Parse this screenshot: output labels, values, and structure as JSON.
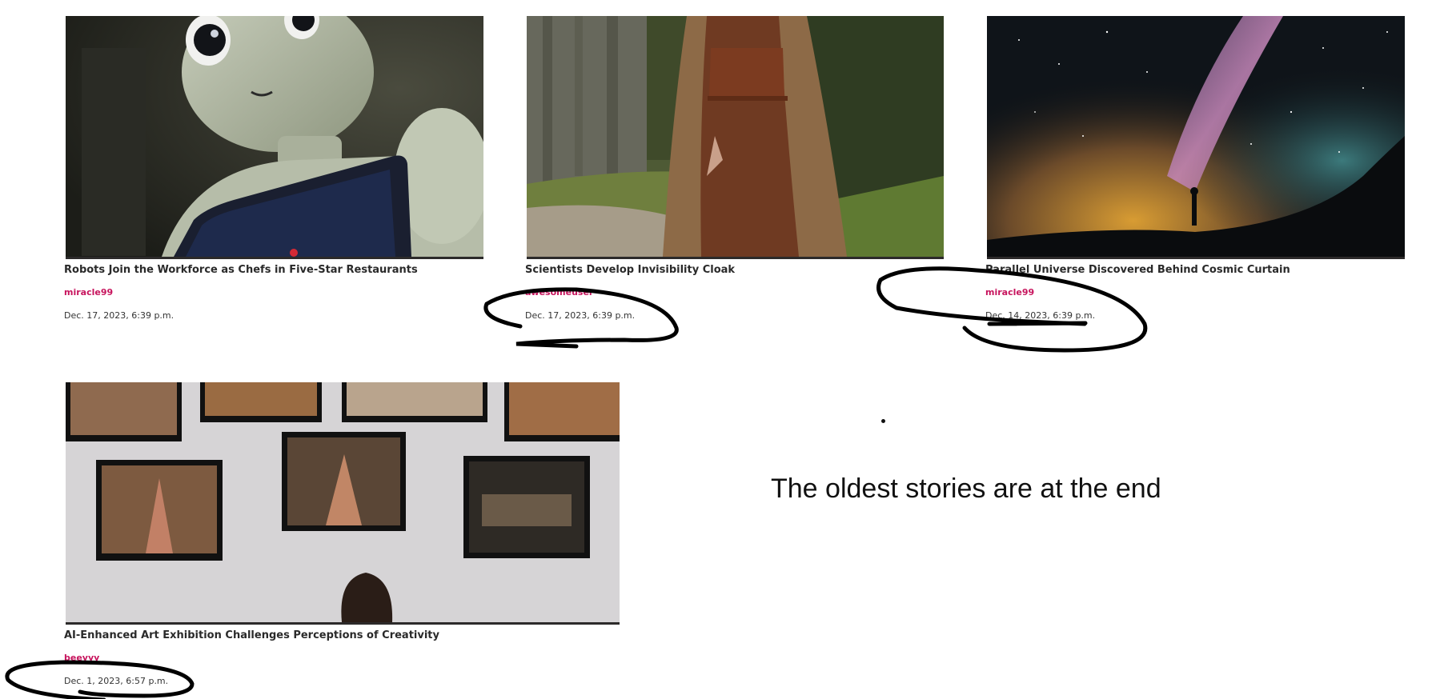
{
  "stories": [
    {
      "title": "Robots Join the Workforce as Chefs in Five-Star Restaurants",
      "author": "miracle99",
      "date": "Dec. 17, 2023, 6:39 p.m."
    },
    {
      "title": "Scientists Develop Invisibility Cloak",
      "author": "awesomeuser",
      "date": "Dec. 17, 2023, 6:39 p.m."
    },
    {
      "title": "Parallel Universe Discovered Behind Cosmic Curtain",
      "author": "miracle99",
      "date": "Dec. 14, 2023, 6:39 p.m."
    },
    {
      "title": "AI-Enhanced Art Exhibition Challenges Perceptions of Creativity",
      "author": "beeyyy",
      "date": "Dec. 1, 2023, 6:57 p.m."
    }
  ],
  "annotation": {
    "note": "The oldest stories are at the end"
  }
}
